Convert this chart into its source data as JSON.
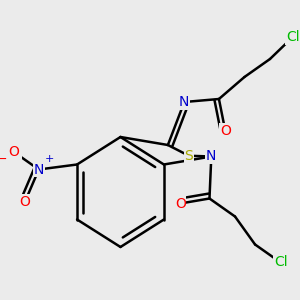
{
  "bg_color": "#ebebeb",
  "atom_colors": {
    "C": "#000000",
    "N": "#0000cc",
    "O": "#ff0000",
    "S": "#aaaa00",
    "Cl": "#00bb00"
  },
  "bond_color": "#000000",
  "bond_width": 1.8,
  "figsize": [
    3.0,
    3.0
  ],
  "dpi": 100
}
